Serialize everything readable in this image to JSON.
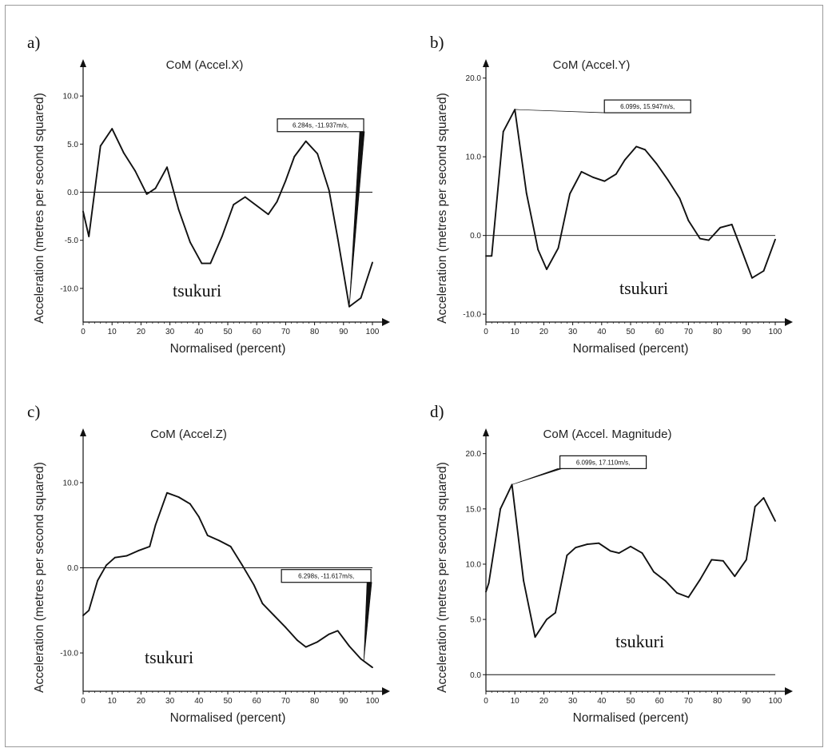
{
  "chart_data": [
    {
      "panel": "a)",
      "type": "line",
      "title": "CoM (Accel.X)",
      "xlabel": "Normalised (percent)",
      "ylabel": "Acceleration (metres per second squared)",
      "watermark": "tsukuri",
      "xlim": [
        0,
        100
      ],
      "ylim": [
        -13.5,
        13.5
      ],
      "xticks": [
        0,
        10,
        20,
        30,
        40,
        50,
        60,
        70,
        80,
        90,
        100
      ],
      "xtick_labels": [
        "0",
        "10",
        "20",
        "30",
        "40",
        "50",
        "60",
        "70",
        "80",
        "90",
        "100"
      ],
      "yticks": [
        10,
        5,
        0,
        -5,
        -10
      ],
      "ytick_labels": [
        "10.0",
        "5.0",
        "0.0",
        "-5.0",
        "-10.0"
      ],
      "x": [
        0,
        2,
        6,
        10,
        14,
        18,
        22,
        25,
        29,
        33,
        37,
        41,
        44,
        48,
        52,
        56,
        60,
        64,
        67,
        70,
        73,
        77,
        81,
        85,
        88,
        92,
        96,
        100
      ],
      "y": [
        -2.0,
        -4.6,
        4.8,
        6.6,
        4.1,
        2.2,
        -0.2,
        0.4,
        2.6,
        -1.8,
        -5.2,
        -7.4,
        -7.4,
        -4.6,
        -1.3,
        -0.5,
        -1.4,
        -2.3,
        -1.0,
        1.2,
        3.7,
        5.3,
        4.0,
        0.2,
        -4.8,
        -11.9,
        -11.0,
        -7.3
      ],
      "annotation": {
        "text": "6.284s, -11.937m/s,",
        "x": 92,
        "y": -11.9
      }
    },
    {
      "panel": "b)",
      "type": "line",
      "title": "CoM (Accel.Y)",
      "xlabel": "Normalised (percent)",
      "ylabel": "Acceleration (metres per second squared)",
      "watermark": "tsukuri",
      "xlim": [
        0,
        100
      ],
      "ylim": [
        -11,
        22
      ],
      "xticks": [
        0,
        10,
        20,
        30,
        40,
        50,
        60,
        70,
        80,
        90,
        100
      ],
      "xtick_labels": [
        "0",
        "10",
        "20",
        "30",
        "40",
        "50",
        "60",
        "70",
        "80",
        "90",
        "100"
      ],
      "yticks": [
        20,
        10,
        0,
        -10
      ],
      "ytick_labels": [
        "20.0",
        "10.0",
        "0.0",
        "-10.0"
      ],
      "x": [
        0,
        2,
        6,
        10,
        14,
        18,
        21,
        25,
        29,
        33,
        37,
        41,
        45,
        48,
        52,
        55,
        59,
        63,
        67,
        70,
        74,
        77,
        81,
        85,
        88,
        92,
        96,
        100
      ],
      "y": [
        -2.6,
        -2.6,
        13.2,
        16.0,
        5.4,
        -1.8,
        -4.3,
        -1.6,
        5.3,
        8.1,
        7.4,
        6.9,
        7.8,
        9.6,
        11.3,
        10.9,
        9.1,
        7.0,
        4.7,
        1.9,
        -0.4,
        -0.6,
        1.0,
        1.4,
        -1.5,
        -5.4,
        -4.5,
        -0.5
      ],
      "annotation": {
        "text": "6.099s, 15.947m/s,",
        "x": 10,
        "y": 16.0
      }
    },
    {
      "panel": "c)",
      "type": "line",
      "title": "CoM (Accel.Z)",
      "xlabel": "Normalised (percent)",
      "ylabel": "Acceleration (metres per second squared)",
      "watermark": "tsukuri",
      "xlim": [
        0,
        100
      ],
      "ylim": [
        -14.5,
        16
      ],
      "xticks": [
        0,
        10,
        20,
        30,
        40,
        50,
        60,
        70,
        80,
        90,
        100
      ],
      "xtick_labels": [
        "0",
        "10",
        "20",
        "30",
        "40",
        "50",
        "60",
        "70",
        "80",
        "90",
        "100"
      ],
      "yticks": [
        10,
        0,
        -10
      ],
      "ytick_labels": [
        "10.0",
        "0.0",
        "-10.0"
      ],
      "x": [
        0,
        2,
        5,
        8,
        11,
        15,
        19,
        23,
        25,
        29,
        33,
        37,
        40,
        43,
        47,
        51,
        55,
        59,
        62,
        66,
        70,
        74,
        77,
        81,
        85,
        88,
        92,
        96,
        100
      ],
      "y": [
        -5.6,
        -5.0,
        -1.5,
        0.3,
        1.2,
        1.4,
        2.0,
        2.5,
        5.0,
        8.8,
        8.3,
        7.5,
        6.0,
        3.8,
        3.2,
        2.5,
        0.3,
        -2.0,
        -4.2,
        -5.6,
        -7.0,
        -8.5,
        -9.3,
        -8.7,
        -7.8,
        -7.4,
        -9.2,
        -10.7,
        -11.7
      ],
      "annotation": {
        "text": "6.298s, -11.617m/s,",
        "x": 97,
        "y": -11.0
      }
    },
    {
      "panel": "d)",
      "type": "line",
      "title": "CoM (Accel. Magnitude)",
      "xlabel": "Normalised (percent)",
      "ylabel": "Acceleration (metres per second squared)",
      "watermark": "tsukuri",
      "xlim": [
        0,
        100
      ],
      "ylim": [
        -1.5,
        22
      ],
      "xticks": [
        0,
        10,
        20,
        30,
        40,
        50,
        60,
        70,
        80,
        90,
        100
      ],
      "xtick_labels": [
        "0",
        "10",
        "20",
        "30",
        "40",
        "50",
        "60",
        "70",
        "80",
        "90",
        "100"
      ],
      "yticks": [
        20,
        15,
        10,
        5,
        0
      ],
      "ytick_labels": [
        "20.0",
        "15.0",
        "10.0",
        "5.0",
        "0.0"
      ],
      "x": [
        0,
        1,
        5,
        9,
        13,
        17,
        21,
        24,
        28,
        31,
        35,
        39,
        43,
        46,
        50,
        54,
        58,
        62,
        66,
        70,
        74,
        78,
        82,
        86,
        90,
        93,
        96,
        100
      ],
      "y": [
        7.5,
        8.3,
        15.0,
        17.2,
        8.5,
        3.4,
        5.0,
        5.6,
        10.8,
        11.5,
        11.8,
        11.9,
        11.2,
        11.0,
        11.6,
        11.0,
        9.3,
        8.5,
        7.4,
        7.0,
        8.6,
        10.4,
        10.3,
        8.9,
        10.4,
        15.2,
        16.0,
        13.9
      ],
      "annotation": {
        "text": "6.099s, 17.110m/s,",
        "x": 9,
        "y": 17.2
      }
    }
  ]
}
